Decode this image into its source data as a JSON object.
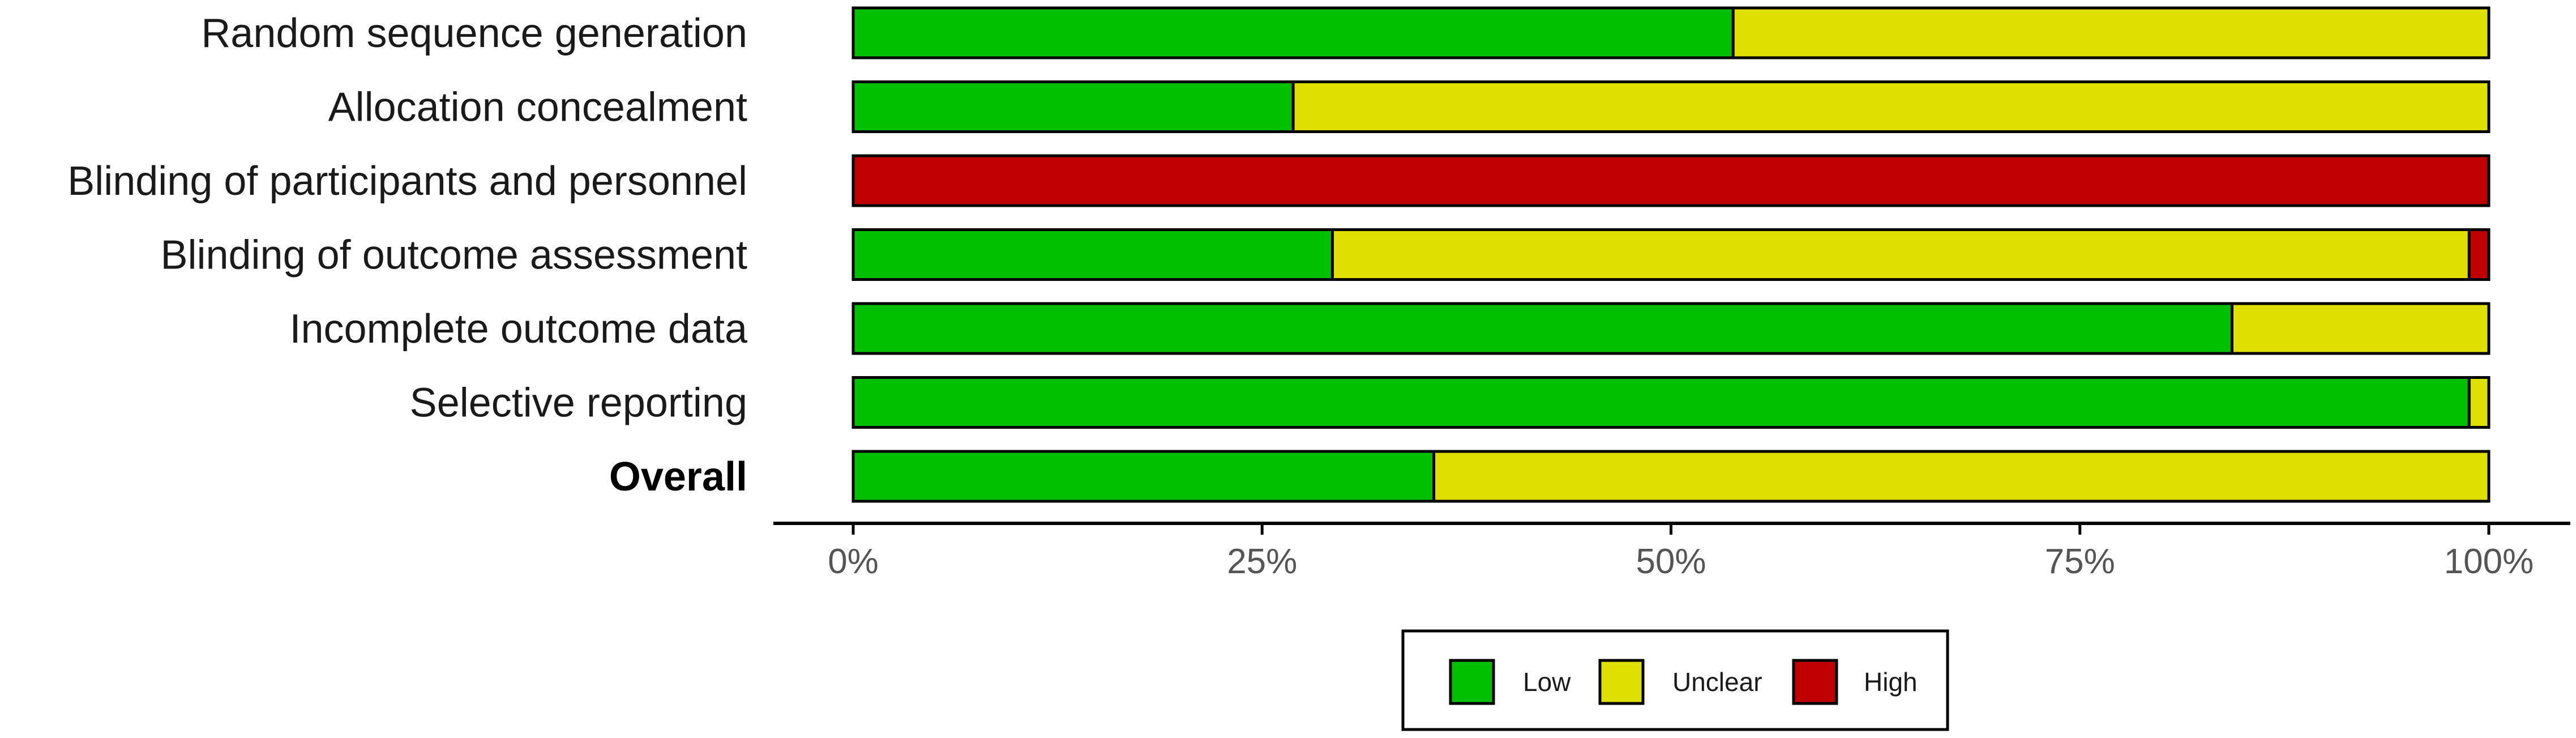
{
  "chart_data": {
    "type": "bar",
    "orientation": "horizontal",
    "stacked": true,
    "categories": [
      "Random sequence generation",
      "Allocation concealment",
      "Blinding of  participants and  personnel",
      "Blinding of  outcome  assessment",
      "Incomplete outcome  data",
      "Selective reporting",
      "Overall"
    ],
    "bold_categories": [
      "Overall"
    ],
    "series": [
      {
        "name": "Low",
        "color": "#00c000",
        "values": [
          53.8,
          26.9,
          0,
          29.3,
          84.3,
          98.8,
          35.5
        ]
      },
      {
        "name": "Unclear",
        "color": "#e0e000",
        "values": [
          46.2,
          73.1,
          0,
          69.5,
          15.7,
          1.2,
          64.5
        ]
      },
      {
        "name": "High",
        "color": "#c00000",
        "values": [
          0,
          0,
          100,
          1.2,
          0,
          0,
          0
        ]
      }
    ],
    "xlim": [
      0,
      100
    ],
    "x_ticks": [
      "0%",
      "25%",
      "50%",
      "75%",
      "100%"
    ],
    "grid": false,
    "legend_position": "bottom"
  },
  "legend": {
    "items": [
      {
        "label": "Low",
        "color": "#00c000"
      },
      {
        "label": "Unclear",
        "color": "#e0e000"
      },
      {
        "label": "High",
        "color": "#c00000"
      }
    ]
  }
}
